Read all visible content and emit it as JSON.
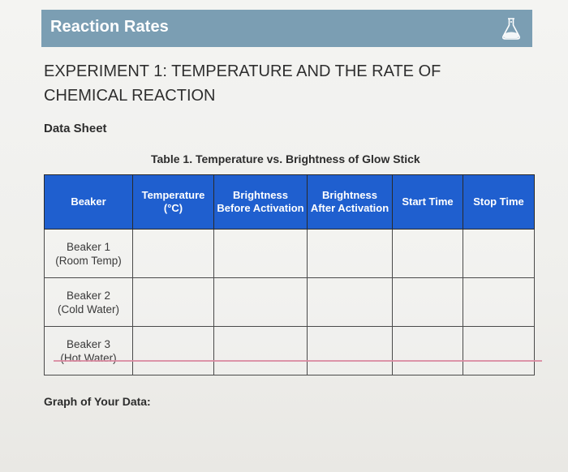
{
  "header": {
    "title": "Reaction Rates",
    "icon": "flask-icon"
  },
  "experiment_title": "EXPERIMENT 1: TEMPERATURE AND THE RATE OF CHEMICAL REACTION",
  "section_heading": "Data Sheet",
  "table": {
    "caption": "Table 1. Temperature vs. Brightness of Glow Stick",
    "columns": [
      "Beaker",
      "Temperature (°C)",
      "Brightness Before Activation",
      "Brightness After Activation",
      "Start Time",
      "Stop Time"
    ],
    "rows": [
      {
        "beaker": "Beaker 1",
        "condition": "(Room Temp)"
      },
      {
        "beaker": "Beaker 2",
        "condition": "(Cold Water)"
      },
      {
        "beaker": "Beaker 3",
        "condition": "(Hot Water)"
      }
    ],
    "header_color": "#1f5fcf"
  },
  "graph_label": "Graph of Your Data:"
}
